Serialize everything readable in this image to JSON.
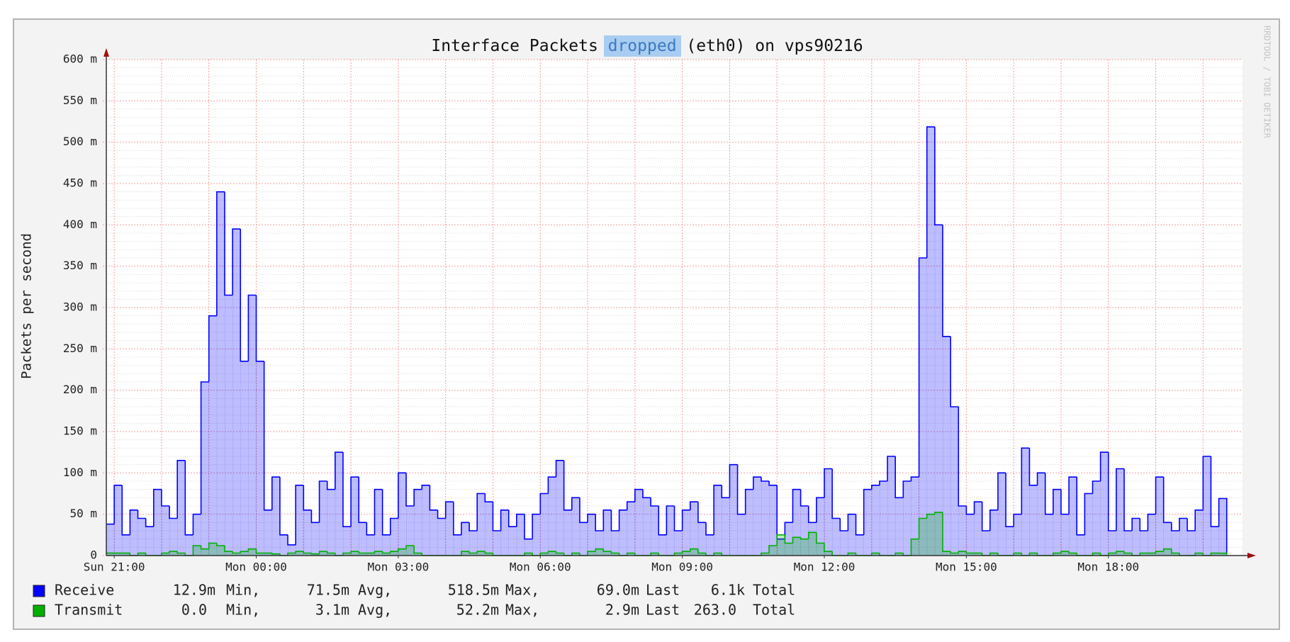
{
  "chart_data": {
    "type": "area",
    "step": true,
    "title": [
      "Interface Packets",
      "dropped",
      "(eth0) on vps90216"
    ],
    "ylabel": "Packets per second",
    "watermark": "RRDTOOL / TOBI OETIKER",
    "x": [
      "Sun 20:50",
      "Sun 21:00",
      "Sun 21:10",
      "Sun 21:20",
      "Sun 21:30",
      "Sun 21:40",
      "Sun 21:50",
      "Sun 22:00",
      "Sun 22:10",
      "Sun 22:20",
      "Sun 22:30",
      "Sun 22:40",
      "Sun 22:50",
      "Sun 23:00",
      "Sun 23:10",
      "Sun 23:20",
      "Sun 23:30",
      "Sun 23:40",
      "Sun 23:50",
      "Mon 00:00",
      "Mon 00:10",
      "Mon 00:20",
      "Mon 00:30",
      "Mon 00:40",
      "Mon 00:50",
      "Mon 01:00",
      "Mon 01:10",
      "Mon 01:20",
      "Mon 01:30",
      "Mon 01:40",
      "Mon 01:50",
      "Mon 02:00",
      "Mon 02:10",
      "Mon 02:20",
      "Mon 02:30",
      "Mon 02:40",
      "Mon 02:50",
      "Mon 03:00",
      "Mon 03:10",
      "Mon 03:20",
      "Mon 03:30",
      "Mon 03:40",
      "Mon 03:50",
      "Mon 04:00",
      "Mon 04:10",
      "Mon 04:20",
      "Mon 04:30",
      "Mon 04:40",
      "Mon 04:50",
      "Mon 05:00",
      "Mon 05:10",
      "Mon 05:20",
      "Mon 05:30",
      "Mon 05:40",
      "Mon 05:50",
      "Mon 06:00",
      "Mon 06:10",
      "Mon 06:20",
      "Mon 06:30",
      "Mon 06:40",
      "Mon 06:50",
      "Mon 07:00",
      "Mon 07:10",
      "Mon 07:20",
      "Mon 07:30",
      "Mon 07:40",
      "Mon 07:50",
      "Mon 08:00",
      "Mon 08:10",
      "Mon 08:20",
      "Mon 08:30",
      "Mon 08:40",
      "Mon 08:50",
      "Mon 09:00",
      "Mon 09:10",
      "Mon 09:20",
      "Mon 09:30",
      "Mon 09:40",
      "Mon 09:50",
      "Mon 10:00",
      "Mon 10:10",
      "Mon 10:20",
      "Mon 10:30",
      "Mon 10:40",
      "Mon 10:50",
      "Mon 11:00",
      "Mon 11:10",
      "Mon 11:20",
      "Mon 11:30",
      "Mon 11:40",
      "Mon 11:50",
      "Mon 12:00",
      "Mon 12:10",
      "Mon 12:20",
      "Mon 12:30",
      "Mon 12:40",
      "Mon 12:50",
      "Mon 13:00",
      "Mon 13:10",
      "Mon 13:20",
      "Mon 13:30",
      "Mon 13:40",
      "Mon 13:50",
      "Mon 14:00",
      "Mon 14:10",
      "Mon 14:20",
      "Mon 14:30",
      "Mon 14:40",
      "Mon 14:50",
      "Mon 15:00",
      "Mon 15:10",
      "Mon 15:20",
      "Mon 15:30",
      "Mon 15:40",
      "Mon 15:50",
      "Mon 16:00",
      "Mon 16:10",
      "Mon 16:20",
      "Mon 16:30",
      "Mon 16:40",
      "Mon 16:50",
      "Mon 17:00",
      "Mon 17:10",
      "Mon 17:20",
      "Mon 17:30",
      "Mon 17:40",
      "Mon 17:50",
      "Mon 18:00",
      "Mon 18:10",
      "Mon 18:20",
      "Mon 18:30",
      "Mon 18:40",
      "Mon 18:50",
      "Mon 19:00",
      "Mon 19:10",
      "Mon 19:20",
      "Mon 19:30",
      "Mon 19:40",
      "Mon 19:50",
      "Mon 20:00",
      "Mon 20:10",
      "Mon 20:20"
    ],
    "xlim": [
      "Sun 20:50",
      "Mon 20:50"
    ],
    "xticks": [
      "Sun 21:00",
      "Mon 00:00",
      "Mon 03:00",
      "Mon 06:00",
      "Mon 09:00",
      "Mon 12:00",
      "Mon 15:00",
      "Mon 18:00"
    ],
    "xgrid": [
      "Sun 21:00",
      "Sun 22:00",
      "Sun 23:00",
      "Mon 00:00",
      "Mon 01:00",
      "Mon 02:00",
      "Mon 03:00",
      "Mon 04:00",
      "Mon 05:00",
      "Mon 06:00",
      "Mon 07:00",
      "Mon 08:00",
      "Mon 09:00",
      "Mon 10:00",
      "Mon 11:00",
      "Mon 12:00",
      "Mon 13:00",
      "Mon 14:00",
      "Mon 15:00",
      "Mon 16:00",
      "Mon 17:00",
      "Mon 18:00",
      "Mon 19:00",
      "Mon 20:00"
    ],
    "ylim": [
      0,
      600
    ],
    "yticks": [
      0,
      {
        "value": 50,
        "label": "50 m"
      },
      {
        "value": 100,
        "label": "100 m"
      },
      {
        "value": 150,
        "label": "150 m"
      },
      {
        "value": 200,
        "label": "200 m"
      },
      {
        "value": 250,
        "label": "250 m"
      },
      {
        "value": 300,
        "label": "300 m"
      },
      {
        "value": 350,
        "label": "350 m"
      },
      {
        "value": 400,
        "label": "400 m"
      },
      {
        "value": 450,
        "label": "450 m"
      },
      {
        "value": 500,
        "label": "500 m"
      },
      {
        "value": 550,
        "label": "550 m"
      },
      {
        "value": 600,
        "label": "600 m"
      }
    ],
    "yminor": [
      10,
      20,
      30,
      40,
      60,
      70,
      80,
      90,
      110,
      120,
      130,
      140,
      160,
      170,
      180,
      190,
      210,
      220,
      230,
      240,
      260,
      270,
      280,
      290,
      310,
      320,
      330,
      340,
      360,
      370,
      380,
      390,
      410,
      420,
      430,
      440,
      460,
      470,
      480,
      490,
      510,
      520,
      530,
      540,
      560,
      570,
      580,
      590
    ],
    "grid": true,
    "stat_names": [
      "Min,",
      "Avg,",
      "Max,",
      "Last",
      "Total"
    ],
    "series": [
      {
        "name": "Receive",
        "color": "#0000ff",
        "stats": [
          "12.9m",
          "71.5m",
          "518.5m",
          "69.0m",
          "6.1k"
        ],
        "values": [
          38,
          85,
          25,
          55,
          45,
          35,
          80,
          60,
          45,
          115,
          25,
          50,
          210,
          290,
          440,
          315,
          395,
          235,
          315,
          235,
          55,
          95,
          25,
          12.9,
          85,
          55,
          40,
          90,
          80,
          125,
          35,
          95,
          40,
          25,
          80,
          25,
          45,
          100,
          60,
          80,
          85,
          55,
          45,
          65,
          25,
          40,
          30,
          75,
          65,
          30,
          55,
          35,
          50,
          20,
          50,
          75,
          95,
          115,
          55,
          70,
          40,
          50,
          30,
          55,
          30,
          55,
          65,
          80,
          70,
          60,
          25,
          60,
          30,
          55,
          65,
          40,
          25,
          85,
          70,
          110,
          50,
          80,
          95,
          90,
          85,
          20,
          40,
          80,
          60,
          40,
          70,
          105,
          45,
          30,
          50,
          25,
          80,
          85,
          90,
          120,
          70,
          90,
          95,
          360,
          518.5,
          400,
          265,
          180,
          60,
          50,
          65,
          30,
          55,
          100,
          35,
          50,
          130,
          85,
          100,
          50,
          80,
          50,
          95,
          25,
          75,
          90,
          125,
          30,
          105,
          30,
          45,
          30,
          50,
          95,
          40,
          30,
          45,
          30,
          55,
          120,
          35,
          69
        ]
      },
      {
        "name": "Transmit",
        "color": "#00b000",
        "stats": [
          "0.0",
          "3.1m",
          "52.2m",
          "2.9m",
          "263.0"
        ],
        "values": [
          3,
          3,
          3,
          0,
          3,
          0,
          0,
          3,
          5,
          3,
          0,
          12,
          8,
          15,
          12,
          5,
          3,
          5,
          8,
          3,
          3,
          2,
          0,
          3,
          5,
          3,
          2,
          5,
          3,
          0,
          3,
          5,
          3,
          3,
          5,
          3,
          5,
          8,
          12,
          3,
          0,
          0,
          0,
          0,
          0,
          5,
          3,
          5,
          3,
          0,
          0,
          0,
          0,
          3,
          0,
          3,
          5,
          3,
          0,
          3,
          0,
          5,
          8,
          5,
          3,
          0,
          3,
          0,
          0,
          3,
          0,
          0,
          3,
          5,
          8,
          3,
          0,
          3,
          0,
          0,
          0,
          0,
          0,
          3,
          12,
          25,
          15,
          22,
          20,
          28,
          15,
          5,
          0,
          0,
          3,
          0,
          0,
          3,
          0,
          0,
          3,
          0,
          20,
          45,
          50,
          52.2,
          5,
          3,
          5,
          3,
          3,
          0,
          3,
          0,
          0,
          3,
          0,
          3,
          0,
          0,
          3,
          5,
          3,
          0,
          0,
          3,
          0,
          3,
          5,
          3,
          0,
          3,
          3,
          5,
          8,
          3,
          0,
          0,
          3,
          0,
          3,
          2.9
        ]
      }
    ]
  }
}
